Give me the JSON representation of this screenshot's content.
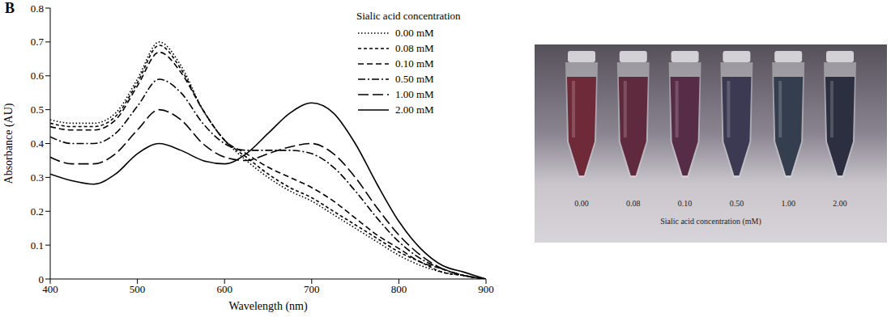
{
  "panel": "B",
  "chart_data": {
    "type": "line",
    "x_label": "Wavelength (nm)",
    "y_label": "Absorbance (AU)",
    "x": [
      400,
      425,
      450,
      475,
      500,
      525,
      550,
      575,
      600,
      625,
      650,
      675,
      700,
      725,
      750,
      775,
      800,
      825,
      850,
      875,
      900
    ],
    "xlim": [
      400,
      900
    ],
    "xticks": [
      400,
      500,
      600,
      700,
      800,
      900
    ],
    "ylim": [
      0,
      0.8
    ],
    "yticks": [
      0,
      0.1,
      0.2,
      0.3,
      0.4,
      0.5,
      0.6,
      0.7,
      0.8
    ],
    "grid": false,
    "legend": "upper right",
    "legend_title": "Sialic acid concentration",
    "series": [
      {
        "name": "0.00 mM",
        "color": "#000000",
        "line_style": "dotted",
        "values": [
          0.47,
          0.46,
          0.46,
          0.49,
          0.59,
          0.7,
          0.63,
          0.5,
          0.41,
          0.35,
          0.3,
          0.26,
          0.23,
          0.19,
          0.15,
          0.11,
          0.07,
          0.04,
          0.02,
          0.01,
          0
        ]
      },
      {
        "name": "0.08 mM",
        "color": "#000000",
        "line_style": "short_dash",
        "values": [
          0.46,
          0.45,
          0.45,
          0.48,
          0.58,
          0.69,
          0.62,
          0.5,
          0.41,
          0.36,
          0.31,
          0.27,
          0.24,
          0.2,
          0.16,
          0.12,
          0.08,
          0.05,
          0.02,
          0.01,
          0
        ]
      },
      {
        "name": "0.10 mM",
        "color": "#000000",
        "line_style": "dash",
        "values": [
          0.45,
          0.44,
          0.44,
          0.47,
          0.57,
          0.67,
          0.61,
          0.5,
          0.41,
          0.37,
          0.33,
          0.3,
          0.27,
          0.23,
          0.18,
          0.13,
          0.09,
          0.05,
          0.03,
          0.01,
          0
        ]
      },
      {
        "name": "0.50 mM",
        "color": "#000000",
        "line_style": "dash_dot",
        "values": [
          0.42,
          0.4,
          0.4,
          0.43,
          0.51,
          0.59,
          0.55,
          0.46,
          0.4,
          0.38,
          0.38,
          0.38,
          0.37,
          0.33,
          0.26,
          0.18,
          0.11,
          0.06,
          0.03,
          0.01,
          0
        ]
      },
      {
        "name": "1.00 mM",
        "color": "#000000",
        "line_style": "long_dash",
        "values": [
          0.36,
          0.34,
          0.34,
          0.37,
          0.44,
          0.5,
          0.47,
          0.4,
          0.36,
          0.35,
          0.37,
          0.39,
          0.4,
          0.37,
          0.3,
          0.21,
          0.13,
          0.07,
          0.03,
          0.01,
          0
        ]
      },
      {
        "name": "2.00 mM",
        "color": "#000000",
        "line_style": "solid",
        "values": [
          0.31,
          0.29,
          0.28,
          0.31,
          0.37,
          0.4,
          0.38,
          0.35,
          0.34,
          0.37,
          0.43,
          0.49,
          0.52,
          0.49,
          0.4,
          0.28,
          0.17,
          0.09,
          0.04,
          0.02,
          0
        ]
      }
    ]
  },
  "photo": {
    "tube_labels": [
      "0.00",
      "0.08",
      "0.10",
      "0.50",
      "1.00",
      "2.00"
    ],
    "axis_label": "Sialic acid concentration (mM)",
    "colors": [
      "#6e2a38",
      "#602a3e",
      "#572c46",
      "#3c3a52",
      "#353e4e",
      "#2c2f40"
    ]
  }
}
